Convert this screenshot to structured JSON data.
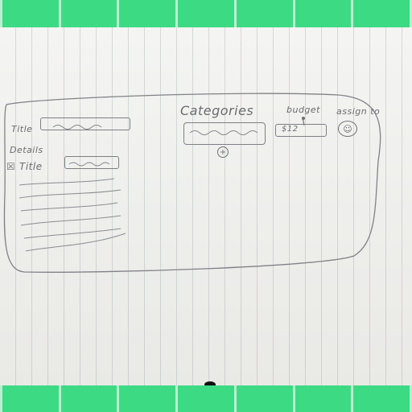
{
  "sketch": {
    "title_label": "Title",
    "details_label": "Details",
    "subtask_title_label": "Title",
    "checkbox_glyph": "☒",
    "categories_label": "Categories",
    "add_category_glyph": "+",
    "budget_label": "budget",
    "budget_value": "$12",
    "assign_label": "assign to",
    "assignee_glyph": "☺"
  },
  "colors": {
    "band": "#3dda84",
    "pencil": "#6a6c70",
    "paper": "#efefec"
  }
}
